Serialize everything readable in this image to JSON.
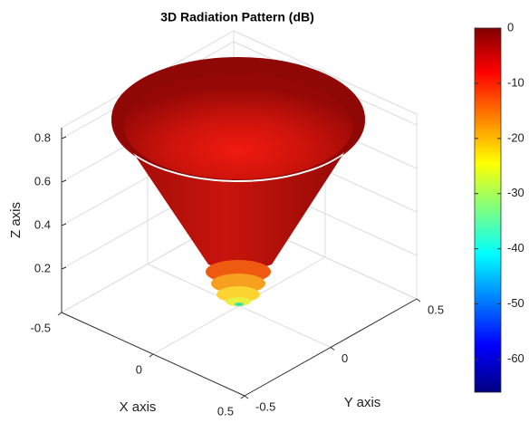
{
  "chart_data": {
    "type": "surface3d",
    "title": "3D Radiation Pattern (dB)",
    "xlabel": "X axis",
    "ylabel": "Y axis",
    "zlabel": "Z axis",
    "xlim": [
      -0.5,
      0.5
    ],
    "ylim": [
      -0.5,
      0.5
    ],
    "zlim": [
      0,
      0.85
    ],
    "xticks": [
      -0.5,
      0,
      0.5
    ],
    "yticks": [
      -0.5,
      0,
      0.5
    ],
    "zticks": [
      0.2,
      0.4,
      0.6,
      0.8
    ],
    "grid": true,
    "colorbar": {
      "clim": [
        -66,
        0
      ],
      "ticks": [
        0,
        -10,
        -20,
        -30,
        -40,
        -50,
        -60
      ]
    }
  }
}
